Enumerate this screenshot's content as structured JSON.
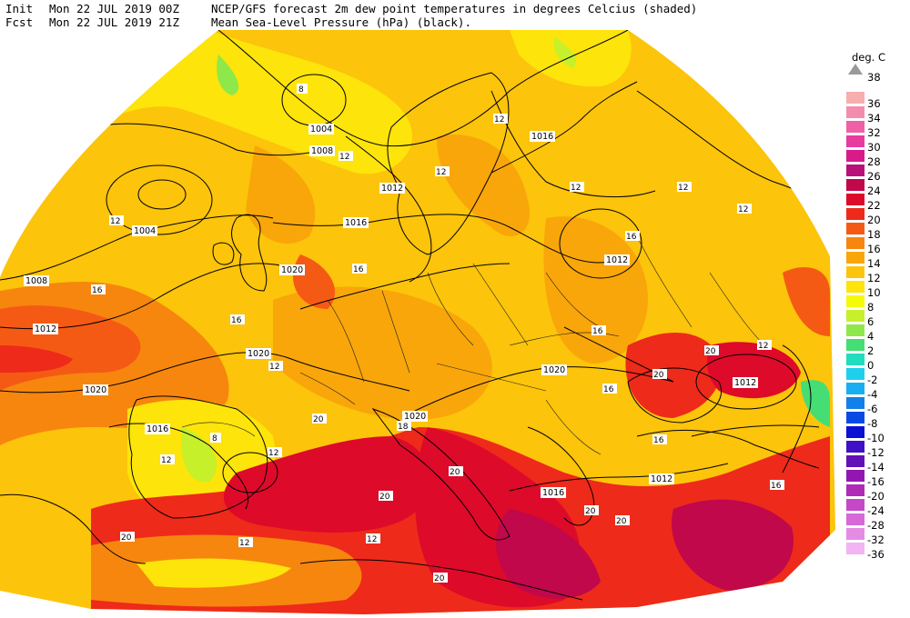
{
  "header": {
    "line1": {
      "label": "Init",
      "datetime": "Mon 22 JUL 2019 00Z",
      "text": "NCEP/GFS forecast 2m dew point temperatures in degrees Celcius (shaded)"
    },
    "line2": {
      "label": "Fcst",
      "datetime": "Mon 22 JUL 2019 21Z",
      "text": "Mean Sea-Level Pressure (hPa) (black)."
    }
  },
  "legend": {
    "unit": "deg. C",
    "max_label": "38",
    "items": [
      {
        "label": "36",
        "color": "#f7aeae"
      },
      {
        "label": "34",
        "color": "#f58cb0"
      },
      {
        "label": "32",
        "color": "#ef60a6"
      },
      {
        "label": "30",
        "color": "#e83a9f"
      },
      {
        "label": "28",
        "color": "#d81a8a"
      },
      {
        "label": "26",
        "color": "#b9107a"
      },
      {
        "label": "24",
        "color": "#c0084a"
      },
      {
        "label": "22",
        "color": "#dd0a2a"
      },
      {
        "label": "20",
        "color": "#ee2a1a"
      },
      {
        "label": "18",
        "color": "#f55a14"
      },
      {
        "label": "16",
        "color": "#f7860e"
      },
      {
        "label": "14",
        "color": "#f9a60a"
      },
      {
        "label": "12",
        "color": "#fcc40a"
      },
      {
        "label": "10",
        "color": "#fde40a"
      },
      {
        "label": "8",
        "color": "#f4fb08"
      },
      {
        "label": "6",
        "color": "#c6f02a"
      },
      {
        "label": "4",
        "color": "#8ee84a"
      },
      {
        "label": "2",
        "color": "#44de74"
      },
      {
        "label": "0",
        "color": "#22dcbe"
      },
      {
        "label": "-2",
        "color": "#1ed0ee"
      },
      {
        "label": "-4",
        "color": "#18aef2"
      },
      {
        "label": "-6",
        "color": "#1280ea"
      },
      {
        "label": "-8",
        "color": "#0a4ae4"
      },
      {
        "label": "-10",
        "color": "#0a10d4"
      },
      {
        "label": "-12",
        "color": "#4010c6"
      },
      {
        "label": "-14",
        "color": "#6210b8"
      },
      {
        "label": "-16",
        "color": "#9416b2"
      },
      {
        "label": "-20",
        "color": "#b02ab8"
      },
      {
        "label": "-24",
        "color": "#c448c8"
      },
      {
        "label": "-28",
        "color": "#d668d8"
      },
      {
        "label": "-32",
        "color": "#e48ce4"
      },
      {
        "label": "-36",
        "color": "#f2b4f2"
      }
    ]
  },
  "map": {
    "isobar_labels": [
      "1004",
      "1008",
      "1016",
      "1012",
      "1016",
      "1020",
      "1004",
      "1008",
      "1012",
      "1020",
      "1012",
      "1020",
      "1016",
      "1020",
      "1020",
      "1012",
      "1016",
      "1012"
    ],
    "dewpoint_labels": [
      "8",
      "12",
      "12",
      "12",
      "12",
      "12",
      "12",
      "12",
      "16",
      "16",
      "16",
      "16",
      "16",
      "12",
      "20",
      "20",
      "20",
      "20",
      "20",
      "20",
      "16",
      "20",
      "18",
      "12",
      "12",
      "12",
      "8",
      "12",
      "16",
      "20",
      "20",
      "12",
      "16"
    ]
  }
}
